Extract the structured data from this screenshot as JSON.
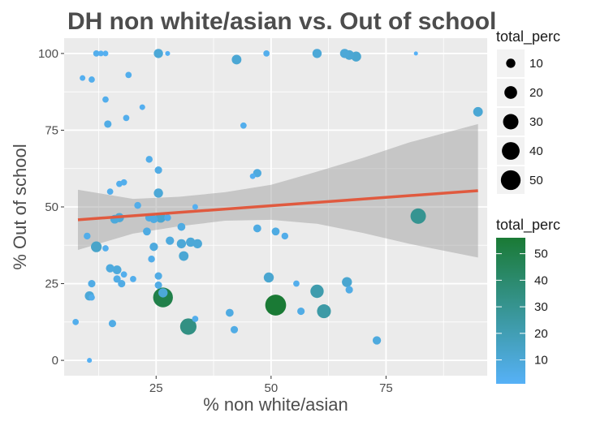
{
  "chart_data": {
    "type": "scatter",
    "title": "DH non white/asian vs. Out of school",
    "xlabel": "% non white/asian",
    "ylabel": "% Out of school",
    "xlim": [
      5,
      97
    ],
    "ylim": [
      -5,
      105
    ],
    "x_ticks": [
      25,
      50,
      75
    ],
    "y_ticks": [
      0,
      25,
      50,
      75,
      100
    ],
    "grid": true,
    "legend_placement": "right",
    "size_legend": {
      "title": "total_perc",
      "values": [
        10,
        20,
        30,
        40,
        50
      ]
    },
    "color_legend": {
      "title": "total_perc",
      "ticks": [
        10,
        20,
        30,
        40,
        50
      ],
      "range": [
        1,
        56
      ],
      "low_color": "#56b1f7",
      "high_color": "#1a7a35"
    },
    "trend": {
      "method": "linear",
      "color": "#e05a3f",
      "line": [
        [
          8,
          45.8
        ],
        [
          95,
          55.3
        ]
      ],
      "band": [
        [
          8,
          36,
          55.6
        ],
        [
          20,
          41.3,
          52.6
        ],
        [
          30,
          43.7,
          53.3
        ],
        [
          40,
          45.5,
          54.8
        ],
        [
          50,
          45.8,
          57.2
        ],
        [
          60,
          44.5,
          61.5
        ],
        [
          70,
          41.5,
          66
        ],
        [
          80,
          38,
          71
        ],
        [
          95,
          33.5,
          77
        ]
      ]
    },
    "points": [
      {
        "x": 12,
        "y": 100,
        "s": 4
      },
      {
        "x": 13,
        "y": 100,
        "s": 3
      },
      {
        "x": 14,
        "y": 100,
        "s": 3
      },
      {
        "x": 25.5,
        "y": 100,
        "s": 10
      },
      {
        "x": 27.5,
        "y": 100,
        "s": 2
      },
      {
        "x": 42.5,
        "y": 98,
        "s": 11
      },
      {
        "x": 49,
        "y": 100,
        "s": 4
      },
      {
        "x": 60,
        "y": 100,
        "s": 10
      },
      {
        "x": 66,
        "y": 100,
        "s": 10
      },
      {
        "x": 67,
        "y": 99.5,
        "s": 11
      },
      {
        "x": 68.5,
        "y": 99,
        "s": 12
      },
      {
        "x": 81.5,
        "y": 100,
        "s": 1
      },
      {
        "x": 9,
        "y": 92,
        "s": 3
      },
      {
        "x": 11,
        "y": 91.5,
        "s": 4
      },
      {
        "x": 19,
        "y": 93,
        "s": 4
      },
      {
        "x": 14,
        "y": 85,
        "s": 4
      },
      {
        "x": 22,
        "y": 82.5,
        "s": 3
      },
      {
        "x": 14.5,
        "y": 77,
        "s": 6
      },
      {
        "x": 18.5,
        "y": 79,
        "s": 4
      },
      {
        "x": 44,
        "y": 76.5,
        "s": 4
      },
      {
        "x": 95,
        "y": 81,
        "s": 11
      },
      {
        "x": 23.5,
        "y": 65.5,
        "s": 5
      },
      {
        "x": 25.5,
        "y": 62,
        "s": 6
      },
      {
        "x": 46,
        "y": 60,
        "s": 3
      },
      {
        "x": 47,
        "y": 61,
        "s": 8
      },
      {
        "x": 17,
        "y": 57.5,
        "s": 4
      },
      {
        "x": 18,
        "y": 58,
        "s": 4
      },
      {
        "x": 15,
        "y": 55,
        "s": 4
      },
      {
        "x": 25.5,
        "y": 54.5,
        "s": 10
      },
      {
        "x": 21,
        "y": 50.5,
        "s": 5
      },
      {
        "x": 33.5,
        "y": 50,
        "s": 3
      },
      {
        "x": 16,
        "y": 46,
        "s": 9
      },
      {
        "x": 17,
        "y": 46.5,
        "s": 10
      },
      {
        "x": 23.5,
        "y": 46.5,
        "s": 7
      },
      {
        "x": 24.5,
        "y": 46,
        "s": 7
      },
      {
        "x": 26,
        "y": 46.5,
        "s": 12
      },
      {
        "x": 27.5,
        "y": 46.5,
        "s": 5
      },
      {
        "x": 30.5,
        "y": 43.5,
        "s": 7
      },
      {
        "x": 23,
        "y": 42,
        "s": 7
      },
      {
        "x": 47,
        "y": 43,
        "s": 7
      },
      {
        "x": 51,
        "y": 42,
        "s": 7
      },
      {
        "x": 53,
        "y": 40.5,
        "s": 5
      },
      {
        "x": 82,
        "y": 47,
        "s": 30
      },
      {
        "x": 10,
        "y": 40.5,
        "s": 5
      },
      {
        "x": 12,
        "y": 37,
        "s": 14
      },
      {
        "x": 14,
        "y": 36.5,
        "s": 4
      },
      {
        "x": 24.5,
        "y": 37,
        "s": 8
      },
      {
        "x": 28,
        "y": 39,
        "s": 8
      },
      {
        "x": 30.5,
        "y": 38,
        "s": 10
      },
      {
        "x": 31,
        "y": 34,
        "s": 11
      },
      {
        "x": 32.5,
        "y": 38.5,
        "s": 10
      },
      {
        "x": 34,
        "y": 38,
        "s": 10
      },
      {
        "x": 24,
        "y": 33,
        "s": 5
      },
      {
        "x": 15,
        "y": 30,
        "s": 8
      },
      {
        "x": 16.5,
        "y": 29.5,
        "s": 9
      },
      {
        "x": 18,
        "y": 28,
        "s": 4
      },
      {
        "x": 16.5,
        "y": 26.5,
        "s": 6
      },
      {
        "x": 17.5,
        "y": 25,
        "s": 6
      },
      {
        "x": 20,
        "y": 26.5,
        "s": 4
      },
      {
        "x": 25.5,
        "y": 27.5,
        "s": 6
      },
      {
        "x": 11,
        "y": 25,
        "s": 6
      },
      {
        "x": 10.5,
        "y": 21,
        "s": 10
      },
      {
        "x": 11,
        "y": 20.5,
        "s": 4
      },
      {
        "x": 25.5,
        "y": 24.5,
        "s": 6
      },
      {
        "x": 26.5,
        "y": 22,
        "s": 10
      },
      {
        "x": 26.5,
        "y": 20.5,
        "s": 50
      },
      {
        "x": 49.5,
        "y": 27,
        "s": 12
      },
      {
        "x": 55.5,
        "y": 25,
        "s": 4
      },
      {
        "x": 60,
        "y": 22.5,
        "s": 22
      },
      {
        "x": 66.5,
        "y": 25.5,
        "s": 12
      },
      {
        "x": 67,
        "y": 23,
        "s": 6
      },
      {
        "x": 51,
        "y": 18,
        "s": 56
      },
      {
        "x": 56.5,
        "y": 16,
        "s": 6
      },
      {
        "x": 61.5,
        "y": 16,
        "s": 24
      },
      {
        "x": 7.5,
        "y": 12.5,
        "s": 4
      },
      {
        "x": 15.5,
        "y": 12,
        "s": 6
      },
      {
        "x": 32,
        "y": 11,
        "s": 34
      },
      {
        "x": 33.5,
        "y": 13.5,
        "s": 4
      },
      {
        "x": 41,
        "y": 15.5,
        "s": 7
      },
      {
        "x": 42,
        "y": 10,
        "s": 6
      },
      {
        "x": 73,
        "y": 6.5,
        "s": 8
      },
      {
        "x": 10.5,
        "y": 0,
        "s": 2
      }
    ]
  }
}
